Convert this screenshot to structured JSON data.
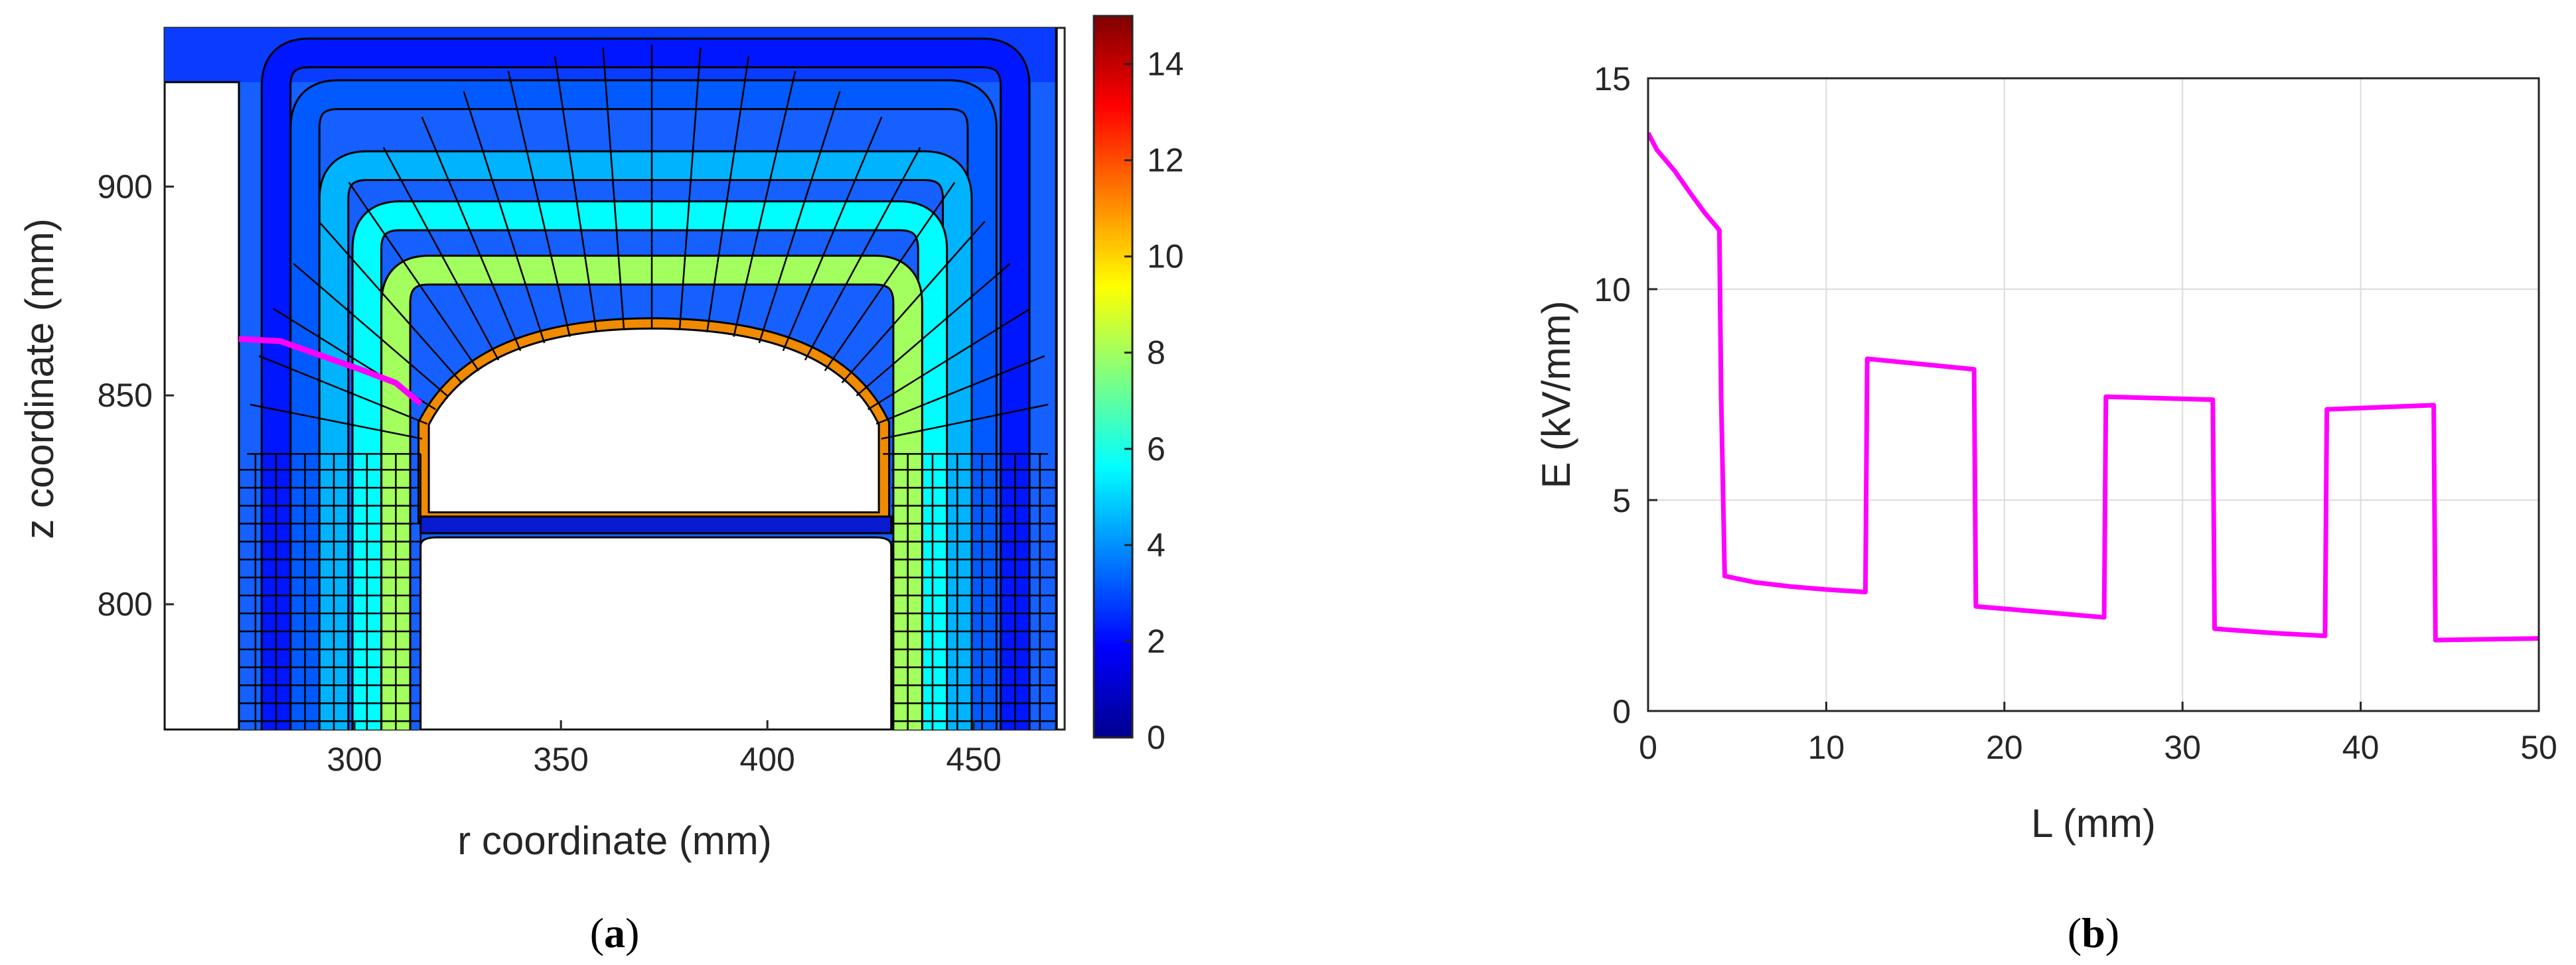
{
  "panel_a": {
    "caption_letter": "a",
    "chart_data": {
      "type": "heatmap",
      "title": "",
      "xlabel": "r coordinate (mm)",
      "ylabel": "z coordinate (mm)",
      "xlim": [
        254,
        472
      ],
      "ylim": [
        770,
        938
      ],
      "x_ticks": [
        300,
        350,
        400,
        450
      ],
      "y_ticks": [
        800,
        850,
        900
      ],
      "colorbar": {
        "min": 0,
        "max": 15,
        "ticks": [
          0,
          2,
          4,
          6,
          8,
          10,
          12,
          14
        ],
        "colormap": "jet"
      },
      "highlight_path": {
        "color": "#ff00ff",
        "r": [
          272,
          282,
          292,
          302,
          310,
          316
        ],
        "z": [
          863.5,
          863,
          859.5,
          856,
          853,
          848
        ]
      }
    }
  },
  "panel_b": {
    "caption_letter": "b",
    "chart_data": {
      "type": "line",
      "title": "",
      "xlabel": "L (mm)",
      "ylabel": "E (kV/mm)",
      "xlim": [
        0,
        50
      ],
      "ylim": [
        0,
        15
      ],
      "x_ticks": [
        0,
        10,
        20,
        30,
        40,
        50
      ],
      "y_ticks": [
        0,
        5,
        10,
        15
      ],
      "grid": true,
      "series": [
        {
          "color": "#ff00ff",
          "x": [
            0,
            0.5,
            1.5,
            2.5,
            3.2,
            4.0,
            4.1,
            4.3,
            6,
            8,
            10,
            12.2,
            12.3,
            18.3,
            18.4,
            22,
            25.6,
            25.7,
            31.7,
            31.8,
            35,
            38.0,
            38.1,
            44.1,
            44.2,
            47,
            50
          ],
          "y": [
            13.7,
            13.3,
            12.8,
            12.2,
            11.8,
            11.4,
            7.5,
            3.2,
            3.05,
            2.95,
            2.88,
            2.82,
            8.35,
            8.1,
            2.48,
            2.35,
            2.22,
            7.45,
            7.38,
            1.95,
            1.85,
            1.78,
            7.15,
            7.25,
            1.68,
            1.7,
            1.72
          ]
        }
      ]
    }
  }
}
